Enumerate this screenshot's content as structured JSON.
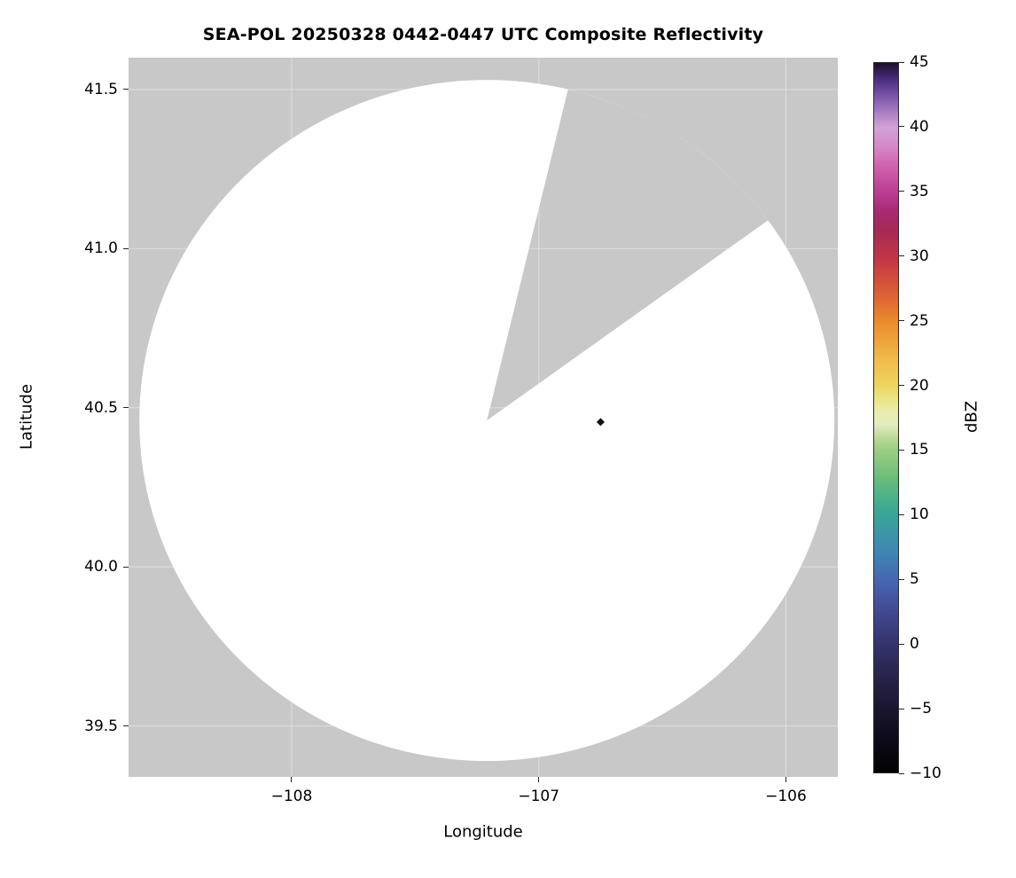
{
  "chart_data": {
    "type": "heatmap",
    "title": "SEA-POL 20250328 0442-0447 UTC Composite Reflectivity",
    "xlabel": "Longitude",
    "ylabel": "Latitude",
    "colorbar_label": "dBZ",
    "xlim": [
      -108.66,
      -105.79
    ],
    "ylim": [
      39.34,
      41.6
    ],
    "grid": true,
    "legend_position": "right-colorbar",
    "x_ticks": [
      {
        "value": -108,
        "label": "−108"
      },
      {
        "value": -107,
        "label": "−107"
      },
      {
        "value": -106,
        "label": "−106"
      }
    ],
    "y_ticks": [
      {
        "value": 41.5,
        "label": "41.5"
      },
      {
        "value": 41.0,
        "label": "41.0"
      },
      {
        "value": 40.5,
        "label": "40.5"
      },
      {
        "value": 40.0,
        "label": "40.0"
      },
      {
        "value": 39.5,
        "label": "39.5"
      }
    ],
    "colorbar_range": [
      -10,
      45
    ],
    "colorbar_ticks": [
      {
        "value": 45,
        "label": "45"
      },
      {
        "value": 40,
        "label": "40"
      },
      {
        "value": 35,
        "label": "35"
      },
      {
        "value": 30,
        "label": "30"
      },
      {
        "value": 25,
        "label": "25"
      },
      {
        "value": 20,
        "label": "20"
      },
      {
        "value": 15,
        "label": "15"
      },
      {
        "value": 10,
        "label": "10"
      },
      {
        "value": 5,
        "label": "5"
      },
      {
        "value": 0,
        "label": "0"
      },
      {
        "value": -5,
        "label": "−5"
      },
      {
        "value": -10,
        "label": "−10"
      }
    ],
    "colorbar_stops": [
      [
        45,
        "#1b0e2d"
      ],
      [
        43.5,
        "#52338a"
      ],
      [
        42,
        "#8a63b3"
      ],
      [
        40.5,
        "#c393cf"
      ],
      [
        40,
        "#d2a3d6"
      ],
      [
        38.5,
        "#d687c5"
      ],
      [
        37,
        "#cf62ae"
      ],
      [
        35,
        "#bc3d94"
      ],
      [
        33.5,
        "#a82a72"
      ],
      [
        32,
        "#a62a55"
      ],
      [
        30,
        "#bf3547"
      ],
      [
        28.5,
        "#cf4a3c"
      ],
      [
        27,
        "#dd6233"
      ],
      [
        25,
        "#ea8a2d"
      ],
      [
        23.5,
        "#eea239"
      ],
      [
        22,
        "#f0bb4a"
      ],
      [
        20,
        "#edd55e"
      ],
      [
        19,
        "#ece385"
      ],
      [
        18,
        "#e9ecae"
      ],
      [
        17,
        "#e4ecc0"
      ],
      [
        15.5,
        "#a9d489"
      ],
      [
        15,
        "#9ccd84"
      ],
      [
        13,
        "#6fbe7a"
      ],
      [
        11.5,
        "#4db387"
      ],
      [
        10,
        "#3aa496"
      ],
      [
        8.5,
        "#3b96a7"
      ],
      [
        7,
        "#3f85b3"
      ],
      [
        5,
        "#4569b1"
      ],
      [
        3.5,
        "#45549f"
      ],
      [
        2,
        "#3f4489"
      ],
      [
        0,
        "#35336e"
      ],
      [
        -2,
        "#2a2752"
      ],
      [
        -3.5,
        "#221e3e"
      ],
      [
        -5,
        "#1a1630"
      ],
      [
        -7,
        "#100d1d"
      ],
      [
        -8.5,
        "#08070f"
      ],
      [
        -10,
        "#030303"
      ]
    ],
    "no_data_color": "#c8c8c8",
    "coverage_color": "#ffffff",
    "grid_color": "#ffffff",
    "radar": {
      "center_lon": -107.21,
      "center_lat": 40.46,
      "coverage_radius_lat_deg": 1.07,
      "blocked_sector_azimuth_deg": [
        13.5,
        54.0
      ]
    },
    "echo_points": [
      {
        "lon": -106.75,
        "lat": 40.455,
        "dbz": -10,
        "color": "#0d0b16"
      }
    ]
  }
}
